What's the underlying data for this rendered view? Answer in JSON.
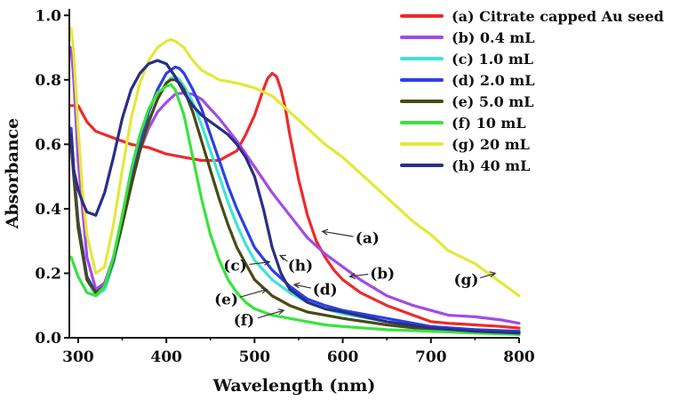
{
  "chart_data": {
    "type": "line",
    "title": "",
    "xlabel": "Wavelength (nm)",
    "ylabel": "Absorbance",
    "xlim": [
      290,
      800
    ],
    "ylim": [
      0.0,
      1.02
    ],
    "xticks": [
      300,
      400,
      500,
      600,
      700,
      800
    ],
    "yticks": [
      0.0,
      0.2,
      0.4,
      0.6,
      0.8,
      1.0
    ],
    "xtick_labels": [
      "300",
      "400",
      "500",
      "600",
      "700",
      "800"
    ],
    "ytick_labels": [
      "0.0",
      "0.2",
      "0.4",
      "0.6",
      "0.8",
      "1.0"
    ],
    "grid": false,
    "legend_position": "top-right",
    "series": [
      {
        "id": "a",
        "name": "(a) Citrate capped Au seed",
        "color": "#ee2a2a",
        "x": [
          292,
          300,
          310,
          320,
          340,
          360,
          380,
          400,
          420,
          440,
          460,
          480,
          490,
          500,
          505,
          510,
          515,
          520,
          525,
          530,
          535,
          540,
          550,
          560,
          570,
          580,
          590,
          600,
          620,
          650,
          680,
          700,
          720,
          750,
          780,
          800
        ],
        "y": [
          0.72,
          0.72,
          0.67,
          0.64,
          0.62,
          0.6,
          0.59,
          0.57,
          0.56,
          0.55,
          0.55,
          0.58,
          0.63,
          0.69,
          0.73,
          0.77,
          0.805,
          0.82,
          0.81,
          0.77,
          0.71,
          0.63,
          0.49,
          0.38,
          0.3,
          0.25,
          0.21,
          0.18,
          0.14,
          0.1,
          0.07,
          0.05,
          0.045,
          0.04,
          0.035,
          0.03
        ]
      },
      {
        "id": "b",
        "name": "(b) 0.4 mL",
        "color": "#a24be3",
        "x": [
          292,
          295,
          300,
          310,
          320,
          330,
          340,
          350,
          360,
          370,
          380,
          390,
          400,
          410,
          420,
          430,
          440,
          450,
          460,
          480,
          500,
          520,
          540,
          560,
          580,
          600,
          620,
          650,
          680,
          700,
          720,
          750,
          780,
          800
        ],
        "y": [
          0.9,
          0.8,
          0.55,
          0.25,
          0.15,
          0.17,
          0.25,
          0.36,
          0.48,
          0.58,
          0.65,
          0.7,
          0.73,
          0.755,
          0.76,
          0.755,
          0.74,
          0.71,
          0.68,
          0.61,
          0.53,
          0.45,
          0.38,
          0.31,
          0.26,
          0.22,
          0.18,
          0.13,
          0.1,
          0.085,
          0.07,
          0.065,
          0.055,
          0.045
        ]
      },
      {
        "id": "c",
        "name": "(c) 1.0 mL",
        "color": "#3fe3d8",
        "x": [
          292,
          295,
          300,
          310,
          320,
          330,
          340,
          350,
          360,
          370,
          380,
          390,
          400,
          405,
          410,
          415,
          420,
          430,
          440,
          450,
          460,
          470,
          480,
          490,
          500,
          520,
          540,
          560,
          580,
          600,
          650,
          700,
          750,
          800
        ],
        "y": [
          0.6,
          0.5,
          0.35,
          0.18,
          0.13,
          0.15,
          0.23,
          0.35,
          0.47,
          0.58,
          0.67,
          0.74,
          0.79,
          0.805,
          0.81,
          0.8,
          0.78,
          0.73,
          0.66,
          0.58,
          0.5,
          0.42,
          0.35,
          0.29,
          0.24,
          0.18,
          0.14,
          0.11,
          0.09,
          0.075,
          0.05,
          0.03,
          0.025,
          0.02
        ]
      },
      {
        "id": "d",
        "name": "(d) 2.0 mL",
        "color": "#2c3fe6",
        "x": [
          292,
          295,
          300,
          310,
          320,
          330,
          340,
          350,
          360,
          370,
          380,
          390,
          400,
          410,
          415,
          420,
          430,
          440,
          450,
          460,
          470,
          480,
          490,
          500,
          520,
          540,
          560,
          580,
          600,
          650,
          700,
          750,
          800
        ],
        "y": [
          0.65,
          0.52,
          0.36,
          0.19,
          0.14,
          0.16,
          0.24,
          0.36,
          0.49,
          0.6,
          0.7,
          0.77,
          0.82,
          0.84,
          0.835,
          0.82,
          0.77,
          0.71,
          0.63,
          0.55,
          0.47,
          0.4,
          0.34,
          0.28,
          0.21,
          0.16,
          0.12,
          0.1,
          0.085,
          0.06,
          0.035,
          0.025,
          0.02
        ]
      },
      {
        "id": "e",
        "name": "(e) 5.0 mL",
        "color": "#4a4a14",
        "x": [
          292,
          295,
          300,
          310,
          320,
          330,
          340,
          350,
          360,
          370,
          380,
          390,
          400,
          405,
          410,
          415,
          420,
          430,
          440,
          450,
          460,
          470,
          480,
          490,
          500,
          520,
          540,
          560,
          580,
          600,
          650,
          700,
          750,
          800
        ],
        "y": [
          0.6,
          0.5,
          0.34,
          0.18,
          0.14,
          0.16,
          0.24,
          0.35,
          0.47,
          0.58,
          0.67,
          0.74,
          0.79,
          0.8,
          0.8,
          0.79,
          0.77,
          0.7,
          0.61,
          0.52,
          0.43,
          0.35,
          0.28,
          0.23,
          0.18,
          0.13,
          0.1,
          0.08,
          0.07,
          0.06,
          0.04,
          0.025,
          0.02,
          0.015
        ]
      },
      {
        "id": "f",
        "name": "(f) 10 mL",
        "color": "#39e33d",
        "x": [
          292,
          300,
          310,
          320,
          330,
          340,
          350,
          360,
          370,
          380,
          390,
          400,
          405,
          410,
          420,
          430,
          440,
          450,
          460,
          470,
          480,
          490,
          500,
          520,
          540,
          560,
          580,
          600,
          650,
          700,
          750,
          800
        ],
        "y": [
          0.25,
          0.19,
          0.14,
          0.13,
          0.16,
          0.25,
          0.38,
          0.52,
          0.63,
          0.71,
          0.76,
          0.78,
          0.785,
          0.77,
          0.69,
          0.56,
          0.43,
          0.32,
          0.24,
          0.18,
          0.14,
          0.11,
          0.09,
          0.07,
          0.06,
          0.05,
          0.04,
          0.035,
          0.025,
          0.02,
          0.015,
          0.01
        ]
      },
      {
        "id": "g",
        "name": "(g) 20 mL",
        "color": "#e3e83a",
        "x": [
          292,
          295,
          300,
          305,
          310,
          320,
          330,
          340,
          350,
          360,
          370,
          380,
          390,
          400,
          405,
          410,
          420,
          430,
          440,
          460,
          480,
          500,
          520,
          540,
          560,
          580,
          600,
          620,
          640,
          660,
          680,
          700,
          720,
          750,
          780,
          800
        ],
        "y": [
          0.96,
          0.88,
          0.65,
          0.45,
          0.32,
          0.2,
          0.22,
          0.35,
          0.52,
          0.68,
          0.79,
          0.86,
          0.9,
          0.92,
          0.925,
          0.92,
          0.9,
          0.86,
          0.83,
          0.8,
          0.79,
          0.775,
          0.75,
          0.7,
          0.65,
          0.6,
          0.56,
          0.51,
          0.46,
          0.41,
          0.36,
          0.32,
          0.27,
          0.23,
          0.17,
          0.13
        ]
      },
      {
        "id": "h",
        "name": "(h) 40 mL",
        "color": "#2a2e86",
        "x": [
          292,
          295,
          300,
          305,
          310,
          320,
          330,
          340,
          350,
          360,
          370,
          380,
          390,
          400,
          410,
          420,
          430,
          440,
          450,
          460,
          470,
          480,
          490,
          500,
          510,
          520,
          530,
          540,
          560,
          580,
          600,
          650,
          700,
          750,
          800
        ],
        "y": [
          0.63,
          0.52,
          0.46,
          0.42,
          0.39,
          0.38,
          0.45,
          0.56,
          0.68,
          0.77,
          0.82,
          0.85,
          0.86,
          0.85,
          0.81,
          0.76,
          0.72,
          0.69,
          0.67,
          0.65,
          0.63,
          0.6,
          0.56,
          0.5,
          0.4,
          0.28,
          0.2,
          0.15,
          0.11,
          0.09,
          0.08,
          0.05,
          0.03,
          0.02,
          0.015
        ]
      }
    ],
    "annotations": [
      {
        "label": "(a)",
        "text_x": 628,
        "text_y": 0.31,
        "arrow_to_x": 577,
        "arrow_to_y": 0.33
      },
      {
        "label": "(b)",
        "text_x": 645,
        "text_y": 0.2,
        "arrow_to_x": 608,
        "arrow_to_y": 0.19
      },
      {
        "label": "(c)",
        "text_x": 478,
        "text_y": 0.225,
        "arrow_to_x": 517,
        "arrow_to_y": 0.235
      },
      {
        "label": "(h)",
        "text_x": 552,
        "text_y": 0.225,
        "arrow_to_x": 529,
        "arrow_to_y": 0.255
      },
      {
        "label": "(d)",
        "text_x": 580,
        "text_y": 0.15,
        "arrow_to_x": 545,
        "arrow_to_y": 0.165
      },
      {
        "label": "(e)",
        "text_x": 468,
        "text_y": 0.12,
        "arrow_to_x": 514,
        "arrow_to_y": 0.15
      },
      {
        "label": "(f)",
        "text_x": 488,
        "text_y": 0.055,
        "arrow_to_x": 533,
        "arrow_to_y": 0.085
      },
      {
        "label": "(g)",
        "text_x": 740,
        "text_y": 0.18,
        "arrow_to_x": 773,
        "arrow_to_y": 0.2
      }
    ]
  }
}
